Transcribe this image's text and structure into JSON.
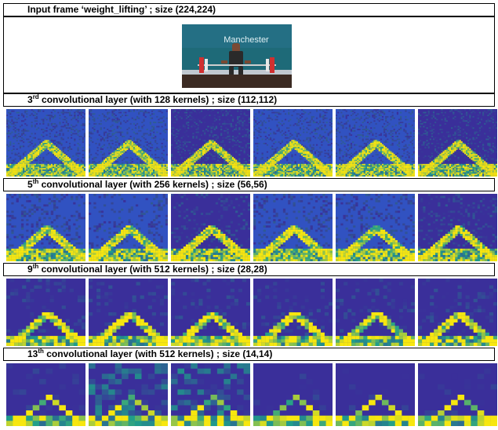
{
  "input": {
    "title": "Input frame ‘weight_lifting’ ; size (224,224)",
    "image_text": "Manchester"
  },
  "layers": [
    {
      "ordinal": "3",
      "suffix": "rd",
      "rest": " convolutional layer (with 128 kernels) ; size (112,112)"
    },
    {
      "ordinal": "5",
      "suffix": "th",
      "rest": " convolutional layer (with 256 kernels) ; size (56,56)"
    },
    {
      "ordinal": "9",
      "suffix": "th",
      "rest": " convolutional layer (with 512 kernels) ; size (28,28)"
    },
    {
      "ordinal": "13",
      "suffix": "th",
      "rest": " convolutional layer (with 512 kernels) ; size (14,14)"
    }
  ],
  "colors": {
    "low": "#3a2f9a",
    "mid": "#1f9e8a",
    "high": "#f7e70f",
    "bright": "#2a6ee0"
  }
}
